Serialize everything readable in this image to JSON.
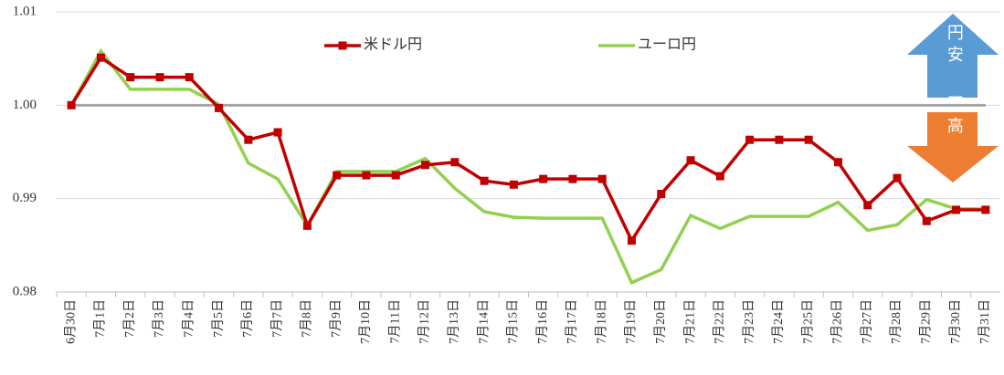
{
  "chart_data": {
    "type": "line",
    "categories": [
      "6月30日",
      "7月1日",
      "7月2日",
      "7月3日",
      "7月4日",
      "7月5日",
      "7月6日",
      "7月7日",
      "7月8日",
      "7月9日",
      "7月10日",
      "7月11日",
      "7月12日",
      "7月13日",
      "7月14日",
      "7月15日",
      "7月16日",
      "7月17日",
      "7月18日",
      "7月19日",
      "7月20日",
      "7月21日",
      "7月22日",
      "7月23日",
      "7月24日",
      "7月25日",
      "7月26日",
      "7月27日",
      "7月28日",
      "7月29日",
      "7月30日",
      "7月31日"
    ],
    "series": [
      {
        "name": "米ドル円",
        "color": "#c00000",
        "marker": "square",
        "values": [
          1.0,
          1.0051,
          1.003,
          1.003,
          1.003,
          0.9997,
          0.9963,
          0.9971,
          0.9871,
          0.9925,
          0.9925,
          0.9925,
          0.9936,
          0.9939,
          0.9919,
          0.9915,
          0.9921,
          0.9921,
          0.9921,
          0.9855,
          0.9905,
          0.9941,
          0.9924,
          0.9963,
          0.9963,
          0.9963,
          0.9939,
          0.9893,
          0.9922,
          0.9876,
          0.9888,
          0.9888
        ]
      },
      {
        "name": "ユーロ円",
        "color": "#92d050",
        "values": [
          1.0,
          1.0058,
          1.0017,
          1.0017,
          1.0017,
          1.0001,
          0.9938,
          0.9921,
          0.9871,
          0.9929,
          0.9929,
          0.9929,
          0.9943,
          0.9911,
          0.9886,
          0.988,
          0.9879,
          0.9879,
          0.9879,
          0.981,
          0.9824,
          0.9882,
          0.9868,
          0.9881,
          0.9881,
          0.9881,
          0.9896,
          0.9866,
          0.9872,
          0.9899,
          0.9889,
          0.9889
        ]
      }
    ],
    "ylim": [
      0.98,
      1.01
    ],
    "yticks": [
      0.98,
      0.99,
      {
        "value": 1,
        "label": "1.00"
      },
      1.01
    ],
    "grid": true,
    "reference_line": 1,
    "annotations": [
      {
        "text": "円安",
        "color": "#5b9bd5"
      },
      {
        "text": "円高",
        "color": "#ed7d31"
      }
    ]
  }
}
